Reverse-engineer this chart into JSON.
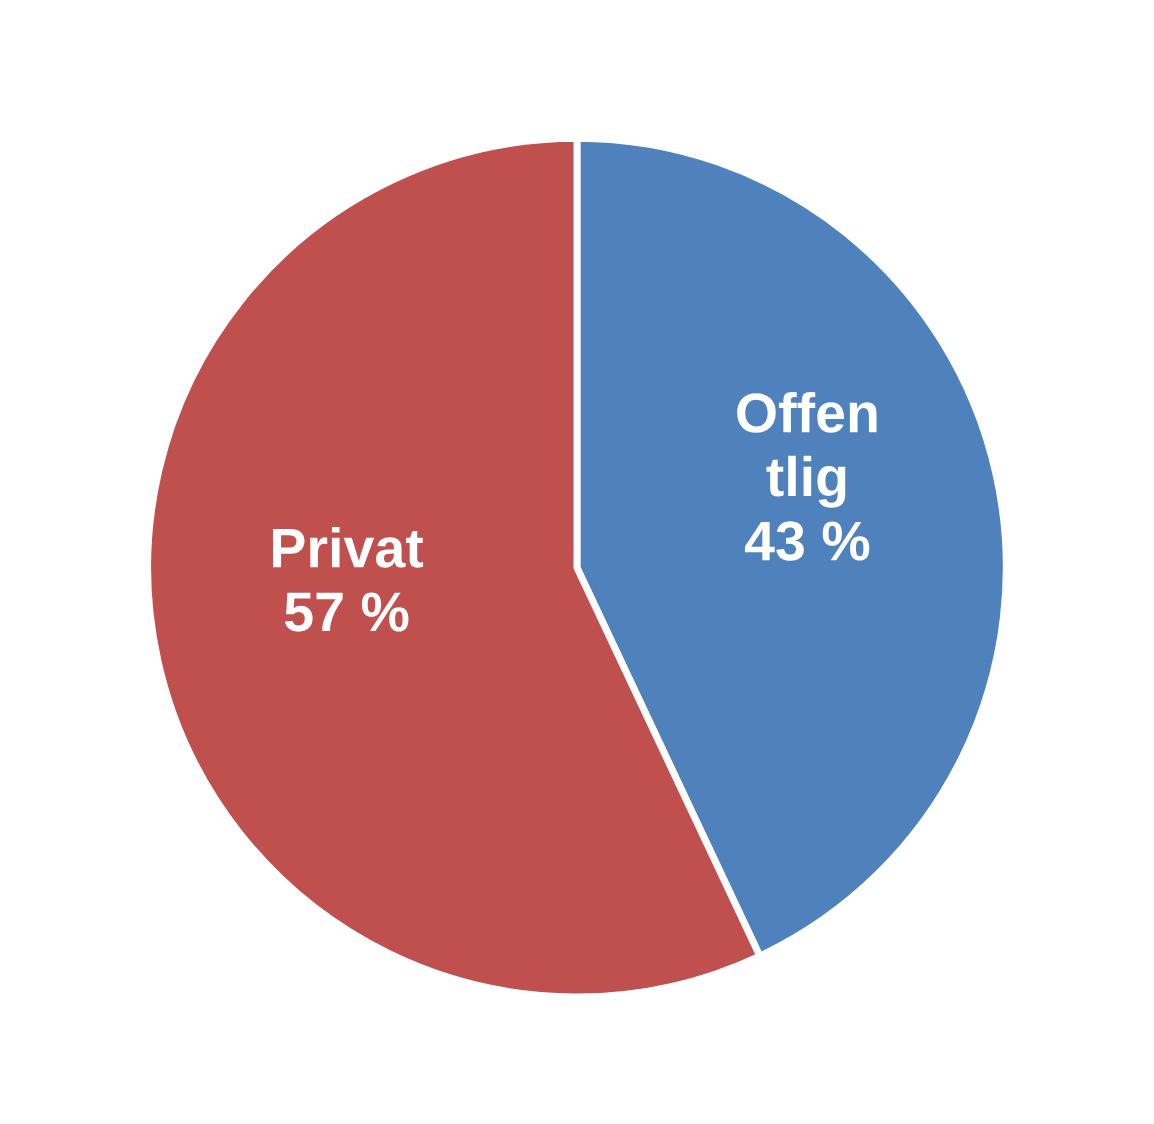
{
  "chart_data": {
    "type": "pie",
    "categories": [
      "Offen\ntlig",
      "Privat"
    ],
    "values": [
      43,
      57
    ],
    "colors": [
      "#4f81bd",
      "#c0504d"
    ],
    "value_labels": [
      "43 %",
      "57 %"
    ],
    "legend": false
  }
}
